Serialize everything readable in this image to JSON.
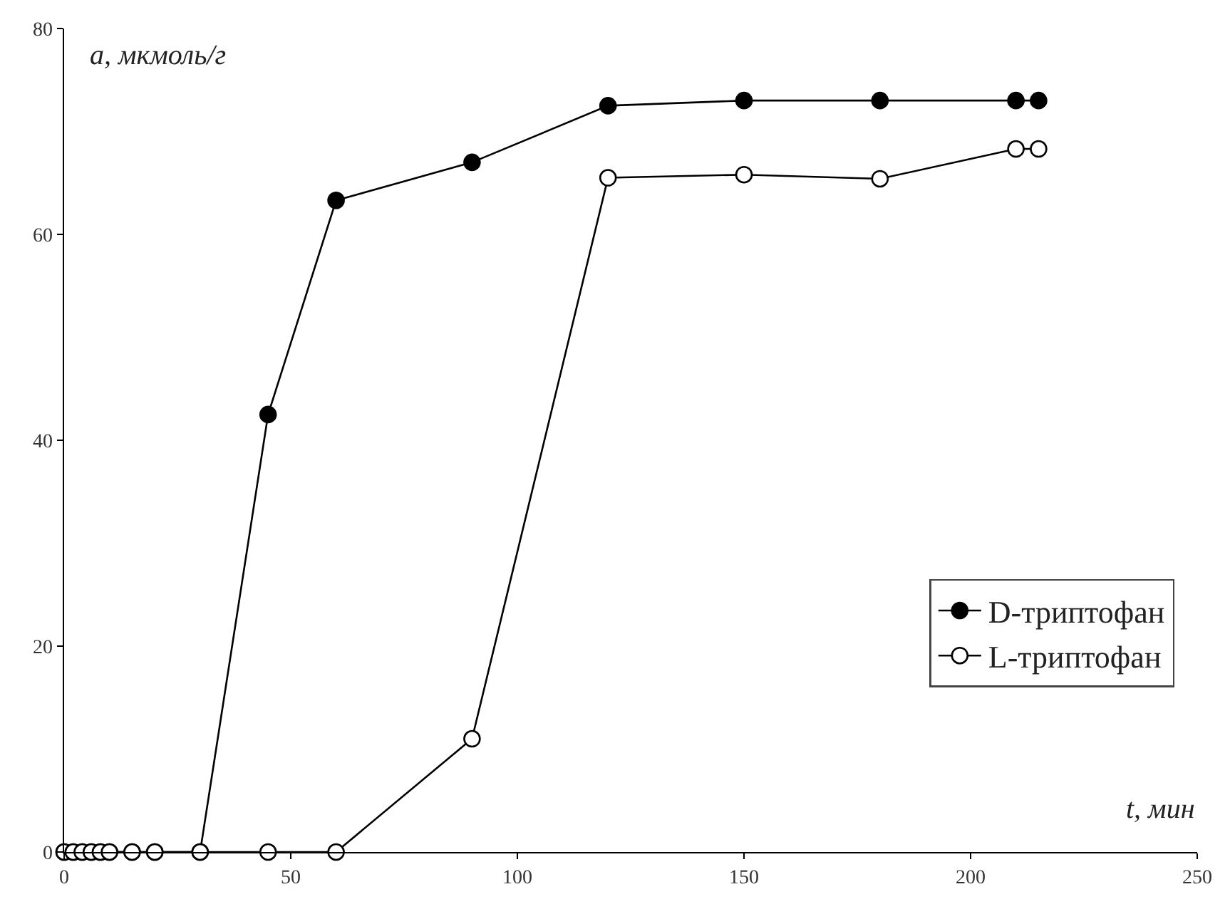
{
  "chart_data": {
    "type": "line",
    "xlabel": "t, мин",
    "ylabel": "a, мкмоль/г",
    "xlim": [
      0,
      250
    ],
    "xticks": [
      0,
      50,
      100,
      150,
      200,
      250
    ],
    "ylim": [
      0,
      80
    ],
    "yticks": [
      0,
      20,
      40,
      60,
      80
    ],
    "legend": "bottom right",
    "marker": "circle",
    "line_style": "solid",
    "series": [
      {
        "name": "D-триптофан",
        "color": "#000000",
        "x": [
          0,
          2,
          4,
          6,
          8,
          10,
          15,
          20,
          30,
          45,
          60,
          90,
          120,
          150,
          180,
          210,
          215
        ],
        "values": [
          0,
          0,
          0,
          0,
          0,
          0,
          0,
          0,
          0,
          42.5,
          63.3,
          67,
          72.5,
          73,
          73,
          73,
          73
        ]
      },
      {
        "name": "L-триптофан",
        "color": "#000000",
        "x": [
          0,
          2,
          4,
          6,
          8,
          10,
          15,
          20,
          30,
          45,
          60,
          90,
          120,
          150,
          180,
          210,
          215
        ],
        "values": [
          0,
          0,
          0,
          0,
          0,
          0,
          0,
          0,
          0,
          0,
          0,
          11,
          65.5,
          65.8,
          65.4,
          68.3,
          68.3
        ]
      }
    ]
  }
}
